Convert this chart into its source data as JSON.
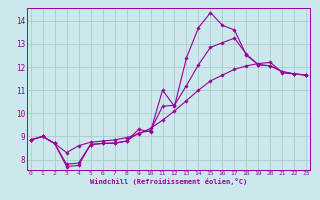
{
  "bg_color": "#cce8ec",
  "line_color": "#990099",
  "grid_color": "#aacccc",
  "xlabel": "Windchill (Refroidissement éolien,°C)",
  "xlim": [
    -0.3,
    23.3
  ],
  "ylim": [
    7.55,
    14.55
  ],
  "yticks": [
    8,
    9,
    10,
    11,
    12,
    13,
    14
  ],
  "xticks": [
    0,
    1,
    2,
    3,
    4,
    5,
    6,
    7,
    8,
    9,
    10,
    11,
    12,
    13,
    14,
    15,
    16,
    17,
    18,
    19,
    20,
    21,
    22,
    23
  ],
  "line1_x": [
    0,
    1,
    2,
    3,
    4,
    5,
    6,
    7,
    8,
    9,
    10,
    11,
    12,
    13,
    14,
    15,
    16,
    17,
    18,
    19,
    20,
    21,
    22,
    23
  ],
  "line1_y": [
    8.85,
    9.0,
    8.7,
    7.7,
    7.75,
    8.65,
    8.7,
    8.7,
    8.8,
    9.3,
    9.2,
    11.0,
    10.3,
    12.4,
    13.7,
    14.35,
    13.8,
    13.6,
    12.5,
    12.1,
    12.05,
    11.8,
    11.7,
    11.65
  ],
  "line2_x": [
    0,
    1,
    2,
    3,
    4,
    5,
    6,
    7,
    8,
    9,
    10,
    11,
    12,
    13,
    14,
    15,
    16,
    17,
    18,
    19,
    20,
    21,
    22,
    23
  ],
  "line2_y": [
    8.85,
    9.0,
    8.7,
    8.3,
    8.6,
    8.75,
    8.8,
    8.85,
    8.95,
    9.1,
    9.35,
    9.7,
    10.1,
    10.55,
    11.0,
    11.4,
    11.65,
    11.9,
    12.05,
    12.15,
    12.2,
    11.75,
    11.7,
    11.65
  ],
  "line3_x": [
    0,
    1,
    2,
    3,
    4,
    5,
    6,
    7,
    8,
    9,
    10,
    11,
    12,
    13,
    14,
    15,
    16,
    17,
    18,
    19,
    20,
    21,
    22,
    23
  ],
  "line3_y": [
    8.85,
    9.0,
    8.7,
    7.8,
    7.85,
    8.65,
    8.7,
    8.72,
    8.8,
    9.15,
    9.25,
    10.3,
    10.35,
    11.2,
    12.1,
    12.85,
    13.05,
    13.25,
    12.55,
    12.1,
    12.05,
    11.8,
    11.7,
    11.65
  ]
}
